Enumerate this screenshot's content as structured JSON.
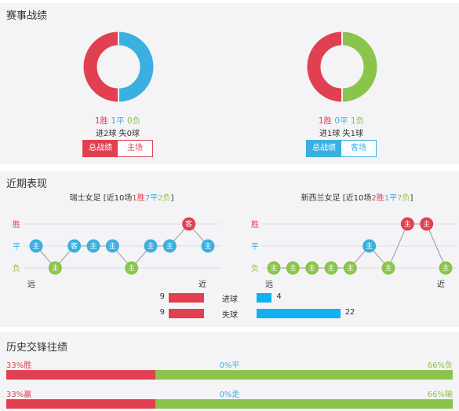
{
  "sections": {
    "record_title": "赛事战绩",
    "recent_title": "近期表现",
    "history_title": "历史交锋往绩"
  },
  "colors": {
    "red": "#e04050",
    "blue": "#3ab0e0",
    "green": "#8ac44a",
    "bar_blue": "#11b0f0"
  },
  "record": {
    "left": {
      "donut": [
        {
          "label": "胜",
          "value": 1,
          "color": "#3ab0e0"
        },
        {
          "label": "平",
          "value": 1,
          "color": "#e04050"
        }
      ],
      "w": "1胜",
      "d": "1平",
      "l": "0负",
      "goals_for": "进2球",
      "goals_against": "失0球",
      "tab_active": "总战绩",
      "tab_other": "主场"
    },
    "right": {
      "donut": [
        {
          "label": "负",
          "value": 1,
          "color": "#8ac44a"
        },
        {
          "label": "胜",
          "value": 1,
          "color": "#e04050"
        }
      ],
      "w": "1胜",
      "d": "0平",
      "l": "1负",
      "goals_for": "进1球",
      "goals_against": "失1球",
      "tab_active": "总战绩",
      "tab_other": "客场"
    }
  },
  "recent": {
    "y_labels": {
      "win": "胜",
      "draw": "平",
      "loss": "负"
    },
    "far_label": "远",
    "near_label": "近",
    "left": {
      "caption_team": "瑞士女足",
      "caption_prefix": "[近10场",
      "w": "1胜",
      "d": "7平",
      "l": "2负",
      "caption_suffix": "]",
      "matches": [
        {
          "r": "d",
          "v": "主"
        },
        {
          "r": "l",
          "v": "主"
        },
        {
          "r": "d",
          "v": "客"
        },
        {
          "r": "d",
          "v": "主"
        },
        {
          "r": "d",
          "v": "主"
        },
        {
          "r": "l",
          "v": "主"
        },
        {
          "r": "d",
          "v": "主"
        },
        {
          "r": "d",
          "v": "主"
        },
        {
          "r": "w",
          "v": "客"
        },
        {
          "r": "d",
          "v": "主"
        }
      ]
    },
    "right": {
      "caption_team": "新西兰女足",
      "caption_prefix": "[近10场",
      "w": "2胜",
      "d": "1平",
      "l": "7负",
      "caption_suffix": "]",
      "matches": [
        {
          "r": "l",
          "v": "主"
        },
        {
          "r": "l",
          "v": "主"
        },
        {
          "r": "l",
          "v": "主"
        },
        {
          "r": "l",
          "v": "主"
        },
        {
          "r": "l",
          "v": "主"
        },
        {
          "r": "d",
          "v": "主"
        },
        {
          "r": "l",
          "v": "主"
        },
        {
          "r": "w",
          "v": "主"
        },
        {
          "r": "w",
          "v": "主"
        },
        {
          "r": "l",
          "v": "主"
        }
      ]
    },
    "comparison": [
      {
        "label": "进球",
        "left": 9,
        "right": 4
      },
      {
        "label": "失球",
        "left": 9,
        "right": 22
      }
    ]
  },
  "history": {
    "rows": [
      {
        "left_label": "33%胜",
        "mid_label": "0%平",
        "right_label": "66%负",
        "left_pct": 33,
        "right_pct": 66
      },
      {
        "left_label": "33%赢",
        "mid_label": "0%走",
        "right_label": "66%输",
        "left_pct": 33,
        "right_pct": 66
      }
    ]
  }
}
